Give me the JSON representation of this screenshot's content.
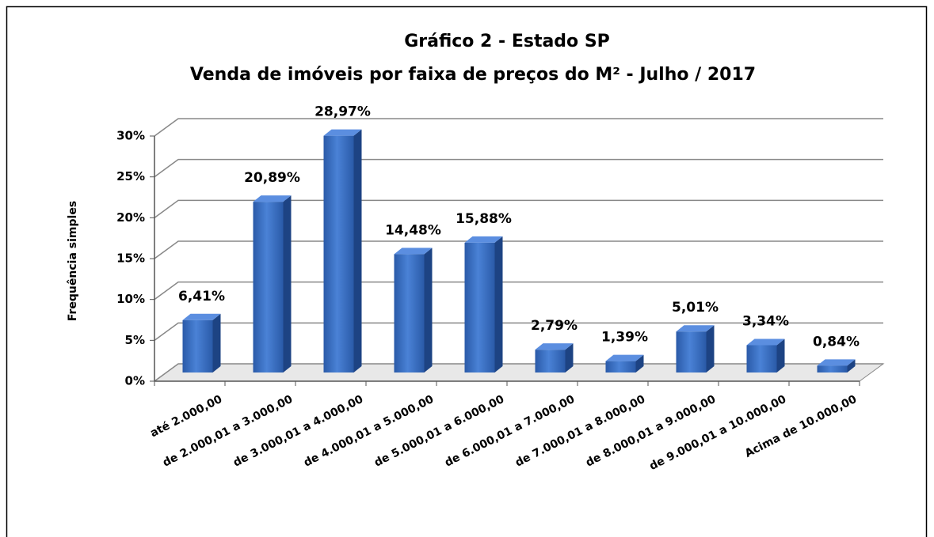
{
  "chart_data": {
    "type": "bar3d",
    "title": [
      "Gráfico 2 - Estado SP",
      "Venda de imóveis por faixa de preços do M²  - Julho / 2017"
    ],
    "y_label": "Frequência simples",
    "categories": [
      "até 2.000,00",
      "de 2.000,01 a 3.000,00",
      "de 3.000,01 a 4.000,00",
      "de 4.000,01 a 5.000,00",
      "de 5.000,01 a 6.000,00",
      "de 6.000,01 a 7.000,00",
      "de 7.000,01 a 8.000,00",
      "de 8.000,01 a 9.000,00",
      "de 9.000,01 a 10.000,00",
      "Acima de 10.000,00"
    ],
    "values": [
      6.41,
      20.89,
      28.97,
      14.48,
      15.88,
      2.79,
      1.39,
      5.01,
      3.34,
      0.84
    ],
    "value_labels": [
      "6,41%",
      "20,89%",
      "28,97%",
      "14,48%",
      "15,88%",
      "2,79%",
      "1,39%",
      "5,01%",
      "3,34%",
      "0,84%"
    ],
    "color": "#2e63b8",
    "ylim": [
      0,
      30
    ],
    "yticks": [
      {
        "value": 0,
        "label": "0%"
      },
      {
        "value": 5,
        "label": "5%"
      },
      {
        "value": 10,
        "label": "10%"
      },
      {
        "value": 15,
        "label": "15%"
      },
      {
        "value": 20,
        "label": "20%"
      },
      {
        "value": 25,
        "label": "25%"
      },
      {
        "value": 30,
        "label": "30%"
      }
    ],
    "grid": true
  }
}
